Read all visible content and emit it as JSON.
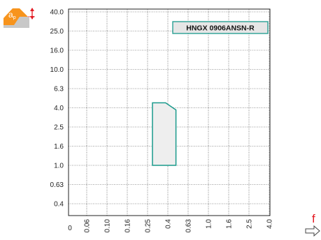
{
  "chart_data": {
    "type": "area",
    "title": "HNGX 0906ANSN-R",
    "x_axis": {
      "name": "f",
      "scale": "categorical-log",
      "ticks": [
        "0",
        "0.06",
        "0.10",
        "0.16",
        "0.25",
        "0.4",
        "0.63",
        "1.0",
        "1.6",
        "2.5",
        "4.0"
      ]
    },
    "y_axis": {
      "scale": "categorical-log",
      "ticks": [
        "0.4",
        "0.63",
        "1.0",
        "1.6",
        "2.5",
        "4.0",
        "6.3",
        "10.0",
        "16.0",
        "25.0",
        "40.0"
      ],
      "bottom_label": "0"
    },
    "grid": true,
    "region": {
      "name": "HNGX 0906ANSN-R",
      "outline_color": "#1a9a8c",
      "fill_color": "#eeeeee",
      "polygon": [
        {
          "f": 0.28,
          "ap": 1.0
        },
        {
          "f": 0.28,
          "ap": 4.5
        },
        {
          "f": 0.38,
          "ap": 4.5
        },
        {
          "f": 0.48,
          "ap": 3.8
        },
        {
          "f": 0.48,
          "ap": 1.0
        }
      ]
    },
    "icon": {
      "name": "cutting-depth-ap-icon",
      "label": "a",
      "subscript": "p",
      "color": "#f7941d"
    }
  }
}
